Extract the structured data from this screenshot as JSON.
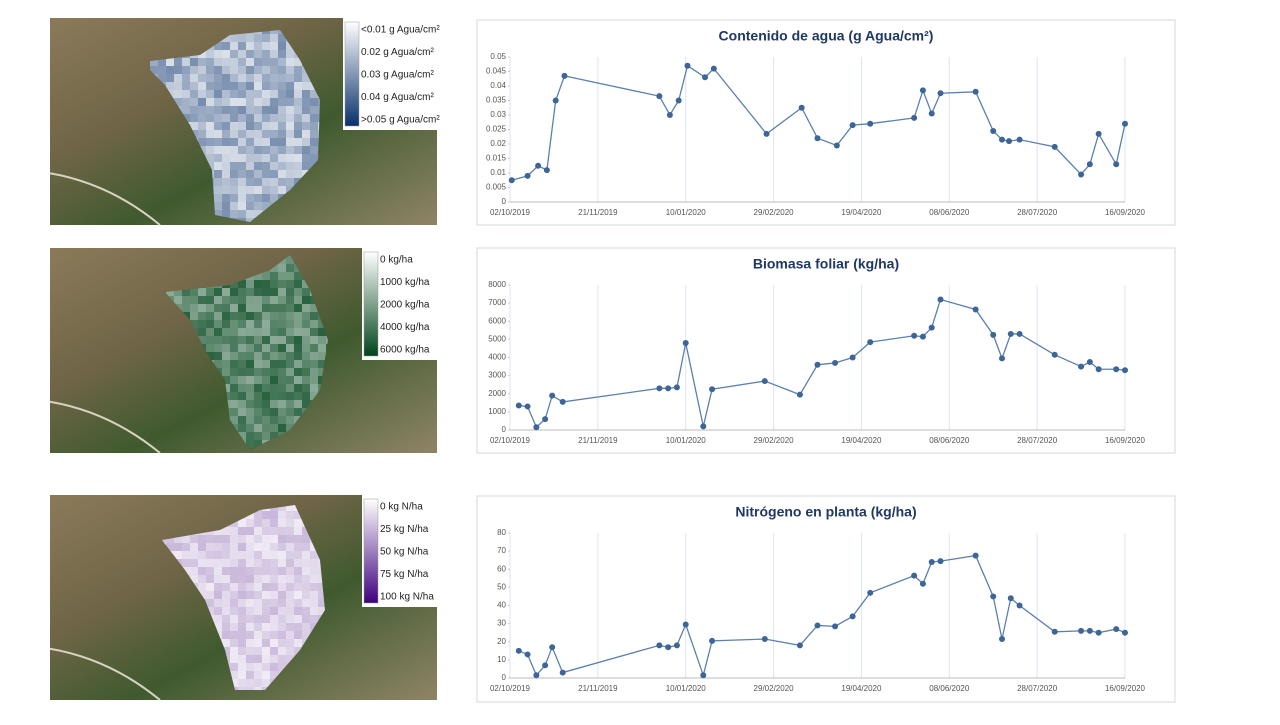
{
  "chart_data": [
    {
      "type": "line",
      "title": "Contenido de agua (g Agua/cm²)",
      "color": "#5b80b0",
      "marker_color": "#3d6597",
      "grid": "x",
      "x": [
        "03/10/2019",
        "12/10/2019",
        "18/10/2019",
        "23/10/2019",
        "28/10/2019",
        "02/11/2019",
        "26/12/2019",
        "01/01/2020",
        "06/01/2020",
        "11/01/2020",
        "21/01/2020",
        "26/01/2020",
        "25/02/2020",
        "16/03/2020",
        "25/03/2020",
        "05/04/2020",
        "14/04/2020",
        "24/04/2020",
        "19/05/2020",
        "24/05/2020",
        "29/05/2020",
        "03/06/2020",
        "23/06/2020",
        "03/07/2020",
        "08/07/2020",
        "12/07/2020",
        "18/07/2020",
        "07/08/2020",
        "22/08/2020",
        "27/08/2020",
        "01/09/2020",
        "11/09/2020",
        "16/09/2020"
      ],
      "values": [
        0.0075,
        0.009,
        0.0125,
        0.011,
        0.035,
        0.0435,
        0.0365,
        0.03,
        0.035,
        0.047,
        0.043,
        0.046,
        0.0235,
        0.0325,
        0.022,
        0.0195,
        0.0265,
        0.027,
        0.029,
        0.0385,
        0.0305,
        0.0375,
        0.038,
        0.0245,
        0.0215,
        0.021,
        0.0215,
        0.019,
        0.0095,
        0.013,
        0.0235,
        0.013,
        0.027
      ],
      "xlim": [
        "02/10/2019",
        "16/09/2020"
      ],
      "xticks": [
        "02/10/2019",
        "21/11/2019",
        "10/01/2020",
        "29/02/2020",
        "19/04/2020",
        "08/06/2020",
        "28/07/2020",
        "16/09/2020"
      ],
      "ylim": [
        0,
        0.05
      ],
      "yticks": [
        0,
        0.005,
        0.01,
        0.015,
        0.02,
        0.025,
        0.03,
        0.035,
        0.04,
        0.045,
        0.05
      ]
    },
    {
      "type": "line",
      "title": "Biomasa foliar (kg/ha)",
      "color": "#5b80b0",
      "marker_color": "#3d6597",
      "grid": "x",
      "x": [
        "07/10/2019",
        "12/10/2019",
        "17/10/2019",
        "22/10/2019",
        "26/10/2019",
        "01/11/2019",
        "26/12/2019",
        "31/12/2019",
        "05/01/2020",
        "10/01/2020",
        "20/01/2020",
        "25/01/2020",
        "24/02/2020",
        "15/03/2020",
        "25/03/2020",
        "04/04/2020",
        "14/04/2020",
        "24/04/2020",
        "19/05/2020",
        "24/05/2020",
        "29/05/2020",
        "03/06/2020",
        "23/06/2020",
        "03/07/2020",
        "08/07/2020",
        "13/07/2020",
        "18/07/2020",
        "07/08/2020",
        "22/08/2020",
        "27/08/2020",
        "01/09/2020",
        "11/09/2020",
        "16/09/2020"
      ],
      "values": [
        1350,
        1300,
        150,
        600,
        1900,
        1550,
        2300,
        2300,
        2350,
        4800,
        200,
        2250,
        2700,
        1950,
        3600,
        3700,
        4000,
        4850,
        5200,
        5150,
        5650,
        7200,
        6650,
        5250,
        3950,
        5300,
        5300,
        4150,
        3500,
        3750,
        3350,
        3350,
        3300
      ],
      "xlim": [
        "02/10/2019",
        "16/09/2020"
      ],
      "xticks": [
        "02/10/2019",
        "21/11/2019",
        "10/01/2020",
        "29/02/2020",
        "19/04/2020",
        "08/06/2020",
        "28/07/2020",
        "16/09/2020"
      ],
      "ylim": [
        0,
        8000
      ],
      "yticks": [
        0,
        1000,
        2000,
        3000,
        4000,
        5000,
        6000,
        7000,
        8000
      ]
    },
    {
      "type": "line",
      "title": "Nitrógeno en planta (kg/ha)",
      "color": "#5b80b0",
      "marker_color": "#3d6597",
      "grid": "x",
      "x": [
        "07/10/2019",
        "12/10/2019",
        "17/10/2019",
        "22/10/2019",
        "26/10/2019",
        "01/11/2019",
        "26/12/2019",
        "31/12/2019",
        "05/01/2020",
        "10/01/2020",
        "20/01/2020",
        "25/01/2020",
        "24/02/2020",
        "15/03/2020",
        "25/03/2020",
        "04/04/2020",
        "14/04/2020",
        "24/04/2020",
        "19/05/2020",
        "24/05/2020",
        "29/05/2020",
        "03/06/2020",
        "23/06/2020",
        "03/07/2020",
        "08/07/2020",
        "13/07/2020",
        "18/07/2020",
        "07/08/2020",
        "22/08/2020",
        "27/08/2020",
        "01/09/2020",
        "11/09/2020",
        "16/09/2020"
      ],
      "values": [
        15,
        13,
        1.5,
        7,
        17,
        3,
        18,
        17,
        18,
        29.5,
        1.5,
        20.5,
        21.5,
        18,
        29,
        28.5,
        34,
        47,
        56.5,
        52,
        64,
        64.5,
        67.5,
        45,
        21.5,
        44,
        40,
        25.5,
        26,
        26,
        25,
        27,
        25
      ],
      "xlim": [
        "02/10/2019",
        "16/09/2020"
      ],
      "xticks": [
        "02/10/2019",
        "21/11/2019",
        "10/01/2020",
        "29/02/2020",
        "19/04/2020",
        "08/06/2020",
        "28/07/2020",
        "16/09/2020"
      ],
      "ylim": [
        0,
        80
      ],
      "yticks": [
        0,
        10,
        20,
        30,
        40,
        50,
        60,
        70,
        80
      ]
    }
  ],
  "maps": [
    {
      "legend": [
        "<0.01 g Agua/cm²",
        "0.02 g Agua/cm²",
        "0.03 g Agua/cm²",
        "0.04 g Agua/cm²",
        ">0.05 g Agua/cm²"
      ],
      "colors": [
        "#ffffff",
        "#08306b"
      ]
    },
    {
      "legend": [
        "0 kg/ha",
        "1000 kg/ha",
        "2000 kg/ha",
        "4000 kg/ha",
        "6000 kg/ha"
      ],
      "colors": [
        "#ffffff",
        "#00441b"
      ]
    },
    {
      "legend": [
        "0 kg N/ha",
        "25 kg N/ha",
        "50 kg N/ha",
        "75 kg N/ha",
        "100 kg N/ha"
      ],
      "colors": [
        "#ffffff",
        "#3f007d"
      ]
    }
  ]
}
